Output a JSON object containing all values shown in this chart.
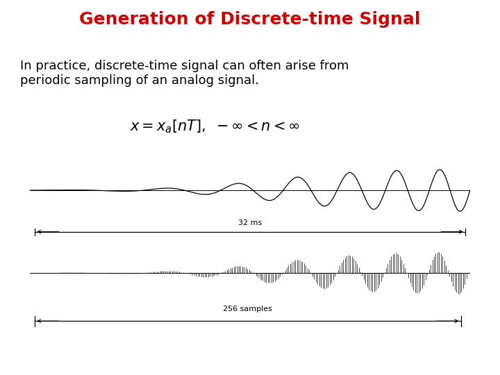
{
  "title": "Generation of Discrete-time Signal",
  "title_color": "#cc0000",
  "title_fontsize": 18,
  "body_text": "In practice, discrete-time signal can often arise from\nperiodic sampling of an analog signal.",
  "body_fontsize": 13,
  "formula": "$x = x_a[nT],\\ -\\infty < n < \\infty$",
  "formula_fontsize": 15,
  "annotation_32ms": "32 ms",
  "annotation_256": "256 samples",
  "bg_color": "#ffffff",
  "signal_color": "#000000",
  "n_samples": 256,
  "analog_freq": 2.8,
  "envelope_rate": 0.02
}
